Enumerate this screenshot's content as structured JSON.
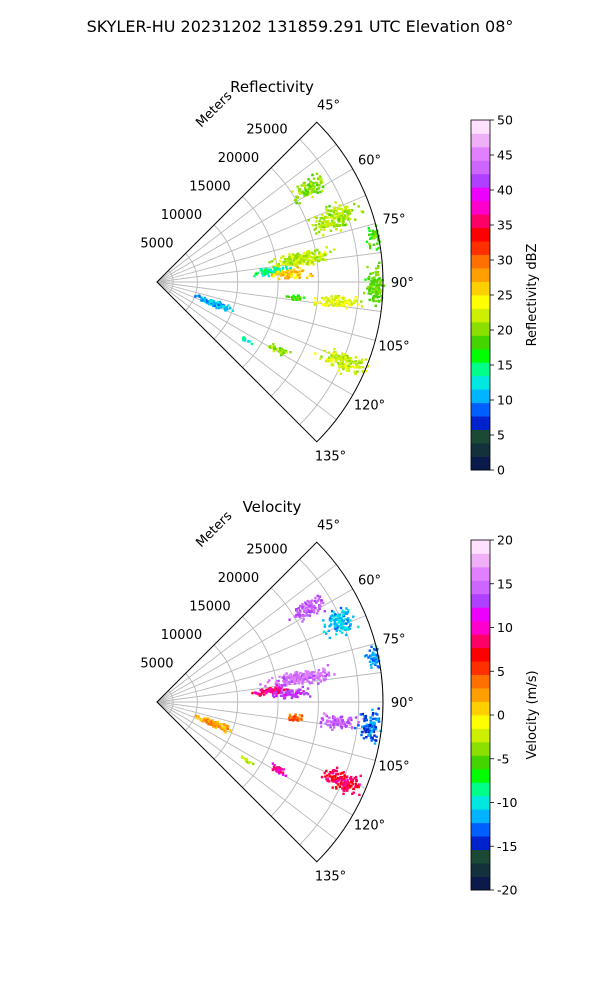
{
  "figure": {
    "title": "SKYLER-HU  20231202  131859.291 UTC Elevation 08°"
  },
  "chart_data": [
    {
      "type": "heatmap",
      "projection": "polar-sector",
      "title": "Reflectivity",
      "range_axis_label": "Meters",
      "range_ticks": [
        5000,
        10000,
        15000,
        20000,
        25000
      ],
      "range_max": 28000,
      "azimuth_range_deg": [
        45,
        135
      ],
      "azimuth_ticks": [
        "45°",
        "60°",
        "75°",
        "90°",
        "105°",
        "120°",
        "135°"
      ],
      "colorbar": {
        "label": "Reflectivity dBZ",
        "range": [
          0,
          50
        ],
        "ticks": [
          0,
          5,
          10,
          15,
          20,
          25,
          30,
          35,
          40,
          45,
          50
        ],
        "colors": [
          "#0a1a4a",
          "#13303d",
          "#1a4a35",
          "#0022cc",
          "#0060ff",
          "#00b4ff",
          "#00e8e0",
          "#00ff88",
          "#00ff00",
          "#44d400",
          "#8ce000",
          "#ccf000",
          "#ffff00",
          "#ffd000",
          "#ffa000",
          "#ff7000",
          "#ff3000",
          "#ff0000",
          "#ff0066",
          "#ff00cc",
          "#ee00ff",
          "#b040ff",
          "#cc66ff",
          "#e080ff",
          "#f0b0f8",
          "#ffe0ff"
        ]
      },
      "echoes": [
        {
          "az": 58,
          "r": 22000,
          "az_span": 4,
          "r_span": 3000,
          "value": 20
        },
        {
          "az": 70,
          "r": 23500,
          "az_span": 5,
          "r_span": 4000,
          "value": 21
        },
        {
          "az": 80,
          "r": 18000,
          "az_span": 4,
          "r_span": 5500,
          "value": 22
        },
        {
          "az": 84,
          "r": 14000,
          "az_span": 3,
          "r_span": 3000,
          "value": 14
        },
        {
          "az": 86,
          "r": 16500,
          "az_span": 3,
          "r_span": 3000,
          "value": 26
        },
        {
          "az": 96,
          "r": 22500,
          "az_span": 3,
          "r_span": 3500,
          "value": 23
        },
        {
          "az": 91,
          "r": 27000,
          "az_span": 7,
          "r_span": 2000,
          "value": 19
        },
        {
          "az": 78,
          "r": 27500,
          "az_span": 4,
          "r_span": 1500,
          "value": 18
        },
        {
          "az": 110,
          "r": 7500,
          "az_span": 4,
          "r_span": 3000,
          "value": 11
        },
        {
          "az": 113,
          "r": 25000,
          "az_span": 4,
          "r_span": 4000,
          "value": 22
        },
        {
          "az": 119,
          "r": 17000,
          "az_span": 2,
          "r_span": 2000,
          "value": 20
        },
        {
          "az": 123,
          "r": 13000,
          "az_span": 1.5,
          "r_span": 1000,
          "value": 13
        },
        {
          "az": 96,
          "r": 17000,
          "az_span": 2,
          "r_span": 1500,
          "value": 18
        }
      ]
    },
    {
      "type": "heatmap",
      "projection": "polar-sector",
      "title": "Velocity",
      "range_axis_label": "Meters",
      "range_ticks": [
        5000,
        10000,
        15000,
        20000,
        25000
      ],
      "range_max": 28000,
      "azimuth_range_deg": [
        45,
        135
      ],
      "azimuth_ticks": [
        "45°",
        "60°",
        "75°",
        "90°",
        "105°",
        "120°",
        "135°"
      ],
      "colorbar": {
        "label": "Velocity (m/s)",
        "range": [
          -20,
          20
        ],
        "ticks": [
          -20,
          -15,
          -10,
          -5,
          0,
          5,
          10,
          15,
          20
        ],
        "colors": [
          "#0a1a4a",
          "#13303d",
          "#1a4a35",
          "#0022cc",
          "#0060ff",
          "#00b4ff",
          "#00e8e0",
          "#00ff88",
          "#00ff00",
          "#44d400",
          "#8ce000",
          "#ccf000",
          "#ffff00",
          "#ffd000",
          "#ffa000",
          "#ff7000",
          "#ff3000",
          "#ff0000",
          "#ff0066",
          "#ff00cc",
          "#ee00ff",
          "#b040ff",
          "#cc66ff",
          "#e080ff",
          "#f0b0f8",
          "#ffe0ff"
        ]
      },
      "echoes": [
        {
          "az": 58,
          "r": 22000,
          "az_span": 4,
          "r_span": 3000,
          "value": 14
        },
        {
          "az": 66,
          "r": 24500,
          "az_span": 5,
          "r_span": 2500,
          "value": -11
        },
        {
          "az": 80,
          "r": 18000,
          "az_span": 4,
          "r_span": 5500,
          "value": 15
        },
        {
          "az": 84,
          "r": 14000,
          "az_span": 3,
          "r_span": 3000,
          "value": 9
        },
        {
          "az": 86,
          "r": 16500,
          "az_span": 3,
          "r_span": 3000,
          "value": 13
        },
        {
          "az": 96,
          "r": 22500,
          "az_span": 3,
          "r_span": 3500,
          "value": 14
        },
        {
          "az": 96,
          "r": 26500,
          "az_span": 6,
          "r_span": 2000,
          "value": -13
        },
        {
          "az": 78,
          "r": 27500,
          "az_span": 4,
          "r_span": 1500,
          "value": -12
        },
        {
          "az": 110,
          "r": 7500,
          "az_span": 4,
          "r_span": 3000,
          "value": 2
        },
        {
          "az": 113,
          "r": 25000,
          "az_span": 4,
          "r_span": 4000,
          "value": 8
        },
        {
          "az": 119,
          "r": 17000,
          "az_span": 2,
          "r_span": 2000,
          "value": 10
        },
        {
          "az": 123,
          "r": 13000,
          "az_span": 1.5,
          "r_span": 1000,
          "value": -2
        },
        {
          "az": 96,
          "r": 17000,
          "az_span": 2,
          "r_span": 1500,
          "value": 4
        }
      ]
    }
  ]
}
